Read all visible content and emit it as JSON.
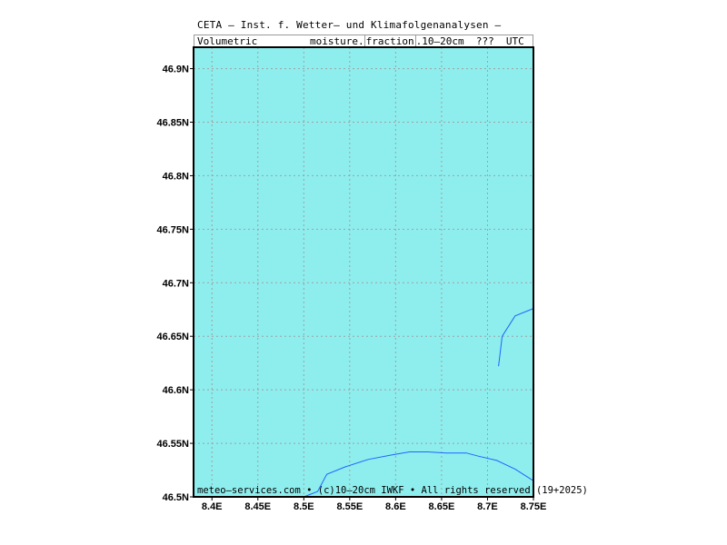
{
  "header": {
    "title": "CETA — Inst. f. Wetter— und Klimafolgenanalysen —",
    "subtitle_left": "Volumetric",
    "subtitle_var": "moisture.",
    "subtitle_unit": "fraction",
    "subtitle_rest": ".10—20cm  ???  UTC"
  },
  "footer": {
    "credit": "meteo—services.com • (c)10—20cm IWKF • All rights reserved (19+2025)"
  },
  "map": {
    "fill_color": "#8eeeee",
    "grid_color": "#a0a0a0",
    "border_color": "#1e64ff",
    "lon_range": [
      8.38,
      8.75
    ],
    "lat_range": [
      46.5,
      46.92
    ],
    "lat_ticks": [
      "46.9N",
      "46.85N",
      "46.8N",
      "46.75N",
      "46.7N",
      "46.65N",
      "46.6N",
      "46.55N",
      "46.5N"
    ],
    "lat_values": [
      46.9,
      46.85,
      46.8,
      46.75,
      46.7,
      46.65,
      46.6,
      46.55,
      46.5
    ],
    "lon_ticks": [
      "8.4E",
      "8.45E",
      "8.5E",
      "8.55E",
      "8.6E",
      "8.65E",
      "8.7E",
      "8.75E"
    ],
    "lon_values": [
      8.4,
      8.45,
      8.5,
      8.55,
      8.6,
      8.65,
      8.7,
      8.75
    ],
    "border_segments": [
      [
        [
          8.5,
          46.5
        ],
        [
          8.515,
          46.505
        ],
        [
          8.525,
          46.521
        ],
        [
          8.545,
          46.528
        ],
        [
          8.57,
          46.535
        ],
        [
          8.595,
          46.539
        ],
        [
          8.615,
          46.542
        ],
        [
          8.635,
          46.542
        ],
        [
          8.655,
          46.541
        ],
        [
          8.677,
          46.541
        ],
        [
          8.69,
          46.538
        ],
        [
          8.71,
          46.534
        ],
        [
          8.73,
          46.526
        ],
        [
          8.75,
          46.515
        ]
      ],
      [
        [
          8.712,
          46.622
        ],
        [
          8.716,
          46.65
        ],
        [
          8.73,
          46.669
        ],
        [
          8.75,
          46.676
        ]
      ]
    ]
  }
}
